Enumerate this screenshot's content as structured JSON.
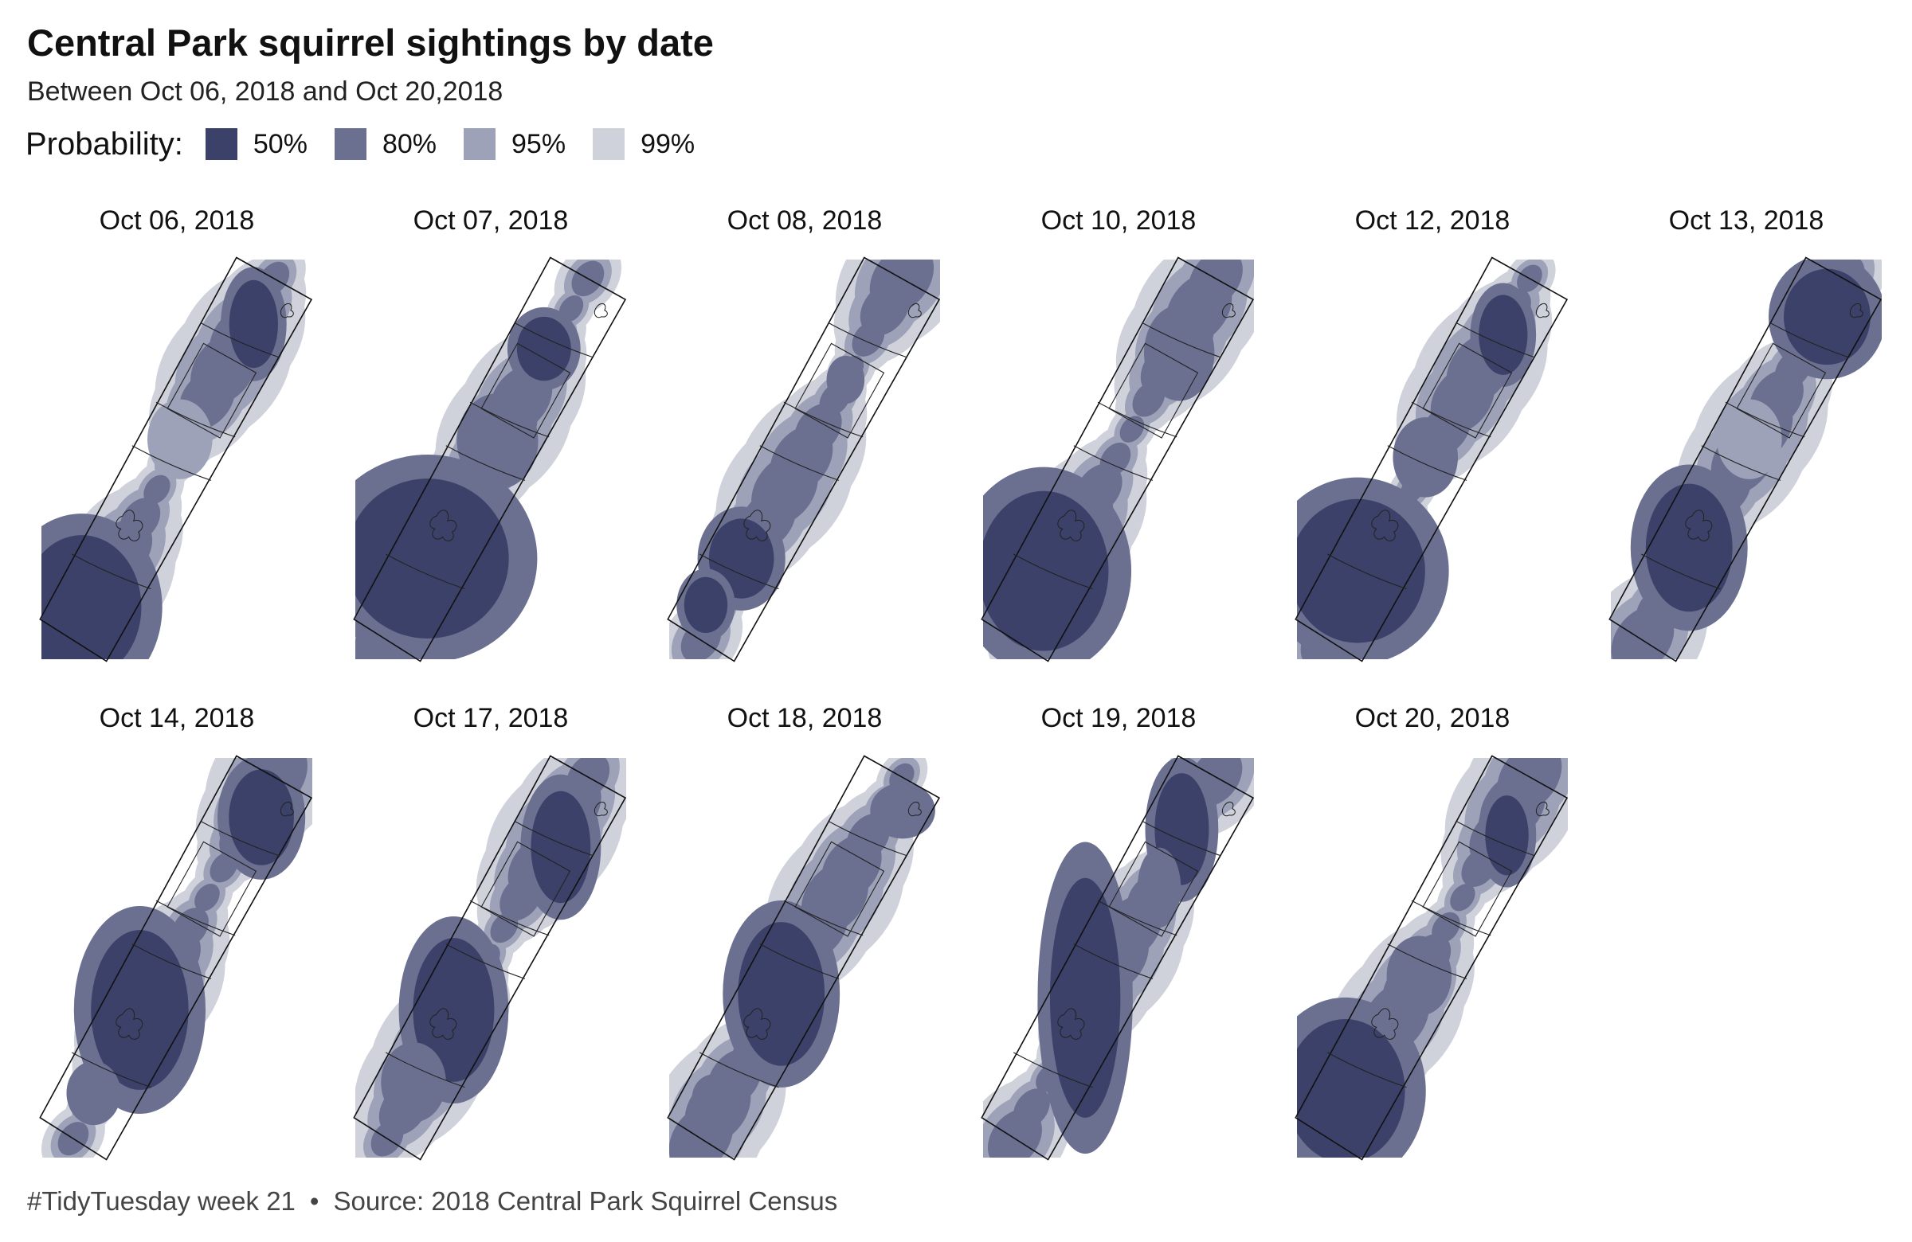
{
  "title": "Central Park squirrel sightings by date",
  "subtitle": "Between Oct 06, 2018 and Oct 20,2018",
  "legend": {
    "title": "Probability:",
    "items": [
      {
        "label": "50%",
        "color": "#3b4168"
      },
      {
        "label": "80%",
        "color": "#6b7090"
      },
      {
        "label": "95%",
        "color": "#9ea2b8"
      },
      {
        "label": "99%",
        "color": "#cfd1db"
      }
    ]
  },
  "chart_data": {
    "type": "heatmap",
    "title": "Central Park squirrel sightings by date",
    "facets": [
      "Oct 06, 2018",
      "Oct 07, 2018",
      "Oct 08, 2018",
      "Oct 10, 2018",
      "Oct 12, 2018",
      "Oct 13, 2018",
      "Oct 14, 2018",
      "Oct 17, 2018",
      "Oct 18, 2018",
      "Oct 19, 2018",
      "Oct 20, 2018"
    ],
    "levels": [
      "50%",
      "80%",
      "95%",
      "99%"
    ],
    "legend_position": "top-left",
    "grid": false
  },
  "footer": {
    "hashtag": "#TidyTuesday week 21",
    "separator": "•",
    "source": "Source: 2018 Central Park Squirrel Census"
  }
}
